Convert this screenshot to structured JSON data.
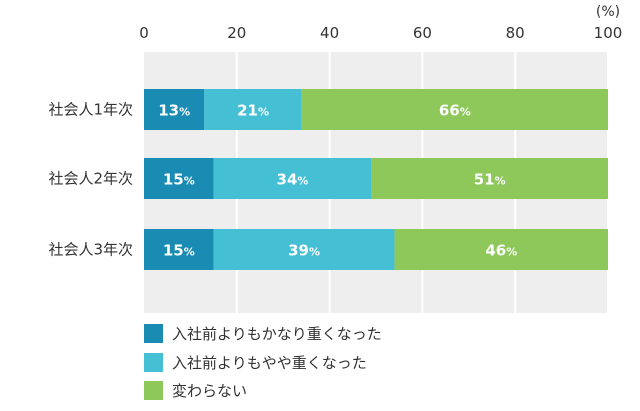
{
  "chart_data": {
    "type": "bar",
    "orientation": "horizontal",
    "stacked": true,
    "unit": "(%)",
    "xlim": [
      0,
      100
    ],
    "ticks": [
      0,
      20,
      40,
      60,
      80,
      100
    ],
    "grid": true,
    "legend_placement": "bottom-left",
    "categories": [
      "社会人1年次",
      "社会人2年次",
      "社会人3年次"
    ],
    "series": [
      {
        "name": "入社前よりもかなり重くなった",
        "color": "#1a8cb4",
        "values": [
          13,
          15,
          15
        ]
      },
      {
        "name": "入社前よりもやや重くなった",
        "color": "#45bfd4",
        "values": [
          21,
          34,
          39
        ]
      },
      {
        "name": "変わらない",
        "color": "#8ec75a",
        "values": [
          66,
          51,
          46
        ]
      }
    ]
  }
}
